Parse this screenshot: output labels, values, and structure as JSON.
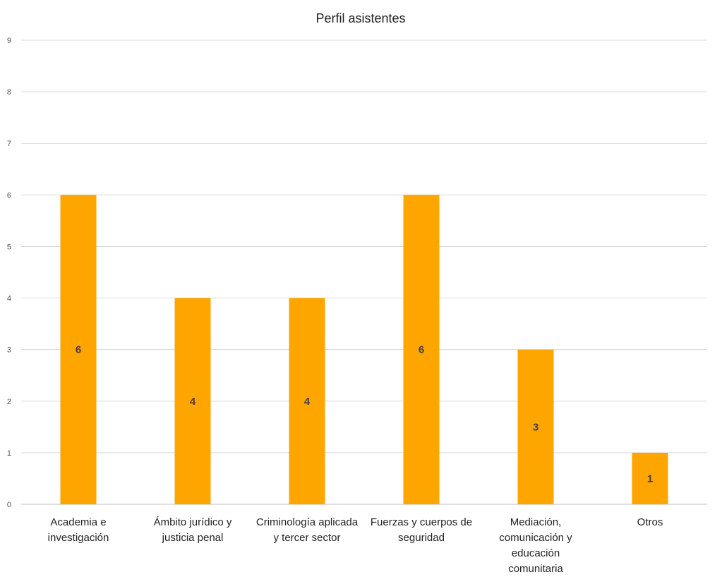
{
  "chart_data": {
    "type": "bar",
    "title": "Perfil asistentes",
    "categories": [
      [
        "Academia e",
        "investigación"
      ],
      [
        "Ámbito jurídico y",
        "justicia penal"
      ],
      [
        "Criminología aplicada",
        "y tercer sector"
      ],
      [
        "Fuerzas y cuerpos de",
        "seguridad"
      ],
      [
        "Mediación,",
        "comunicación y",
        "educación",
        "comunitaria"
      ],
      [
        "Otros"
      ]
    ],
    "values": [
      6,
      4,
      4,
      6,
      3,
      1
    ],
    "ylim": [
      0,
      9
    ],
    "yticks": [
      0,
      1,
      2,
      3,
      4,
      5,
      6,
      7,
      8,
      9
    ],
    "bar_color": "#FFA500",
    "data_labels": true,
    "grid": true,
    "xlabel": "",
    "ylabel": ""
  }
}
